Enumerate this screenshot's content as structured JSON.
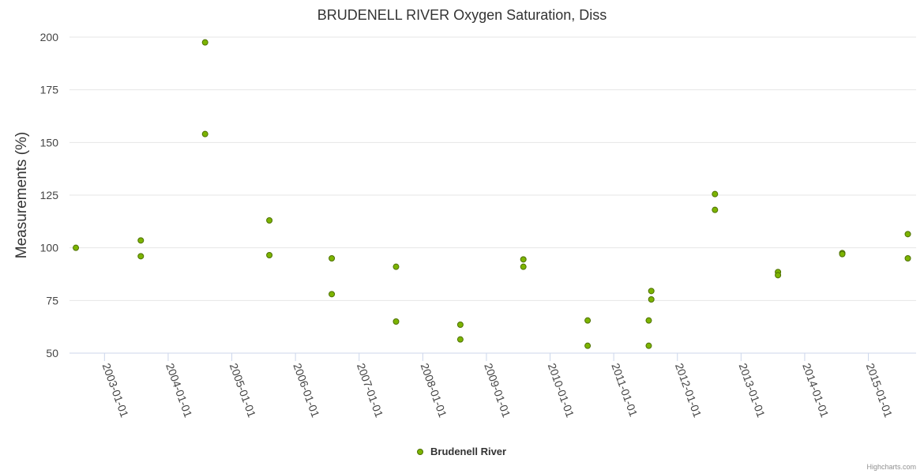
{
  "chart_data": {
    "type": "scatter",
    "title": "BRUDENELL RIVER Oxygen Saturation, Diss",
    "ylabel": "Measurements (%)",
    "xlabel": "",
    "ylim": [
      50,
      200
    ],
    "yticks": [
      50,
      75,
      100,
      125,
      150,
      175,
      200
    ],
    "xticks": [
      "2003-01-01",
      "2004-01-01",
      "2005-01-01",
      "2006-01-01",
      "2007-01-01",
      "2008-01-01",
      "2009-01-01",
      "2010-01-01",
      "2011-01-01",
      "2012-01-01",
      "2013-01-01",
      "2014-01-01",
      "2015-01-01"
    ],
    "xrange": [
      2002.45,
      2015.75
    ],
    "grid": true,
    "legend_position": "bottom-center",
    "series": [
      {
        "name": "Brudenell River",
        "color": "#7cb400",
        "points": [
          {
            "x": 2002.55,
            "y": 100
          },
          {
            "x": 2003.57,
            "y": 103.5
          },
          {
            "x": 2003.57,
            "y": 96
          },
          {
            "x": 2004.58,
            "y": 197.5
          },
          {
            "x": 2004.58,
            "y": 154
          },
          {
            "x": 2005.59,
            "y": 113
          },
          {
            "x": 2005.59,
            "y": 96.5
          },
          {
            "x": 2006.57,
            "y": 95
          },
          {
            "x": 2006.57,
            "y": 78
          },
          {
            "x": 2007.58,
            "y": 91
          },
          {
            "x": 2007.58,
            "y": 65
          },
          {
            "x": 2008.59,
            "y": 63.5
          },
          {
            "x": 2008.59,
            "y": 56.5
          },
          {
            "x": 2009.58,
            "y": 94.5
          },
          {
            "x": 2009.58,
            "y": 91
          },
          {
            "x": 2010.59,
            "y": 65.5
          },
          {
            "x": 2010.59,
            "y": 53.5
          },
          {
            "x": 2011.55,
            "y": 65.5
          },
          {
            "x": 2011.55,
            "y": 53.5
          },
          {
            "x": 2011.59,
            "y": 79.5
          },
          {
            "x": 2011.59,
            "y": 75.5
          },
          {
            "x": 2012.59,
            "y": 125.5
          },
          {
            "x": 2012.59,
            "y": 118
          },
          {
            "x": 2013.58,
            "y": 88.5
          },
          {
            "x": 2013.58,
            "y": 87
          },
          {
            "x": 2014.59,
            "y": 97.5
          },
          {
            "x": 2014.59,
            "y": 97
          },
          {
            "x": 2015.62,
            "y": 106.5
          },
          {
            "x": 2015.62,
            "y": 95
          }
        ]
      }
    ]
  },
  "credits": "Highcharts.com"
}
